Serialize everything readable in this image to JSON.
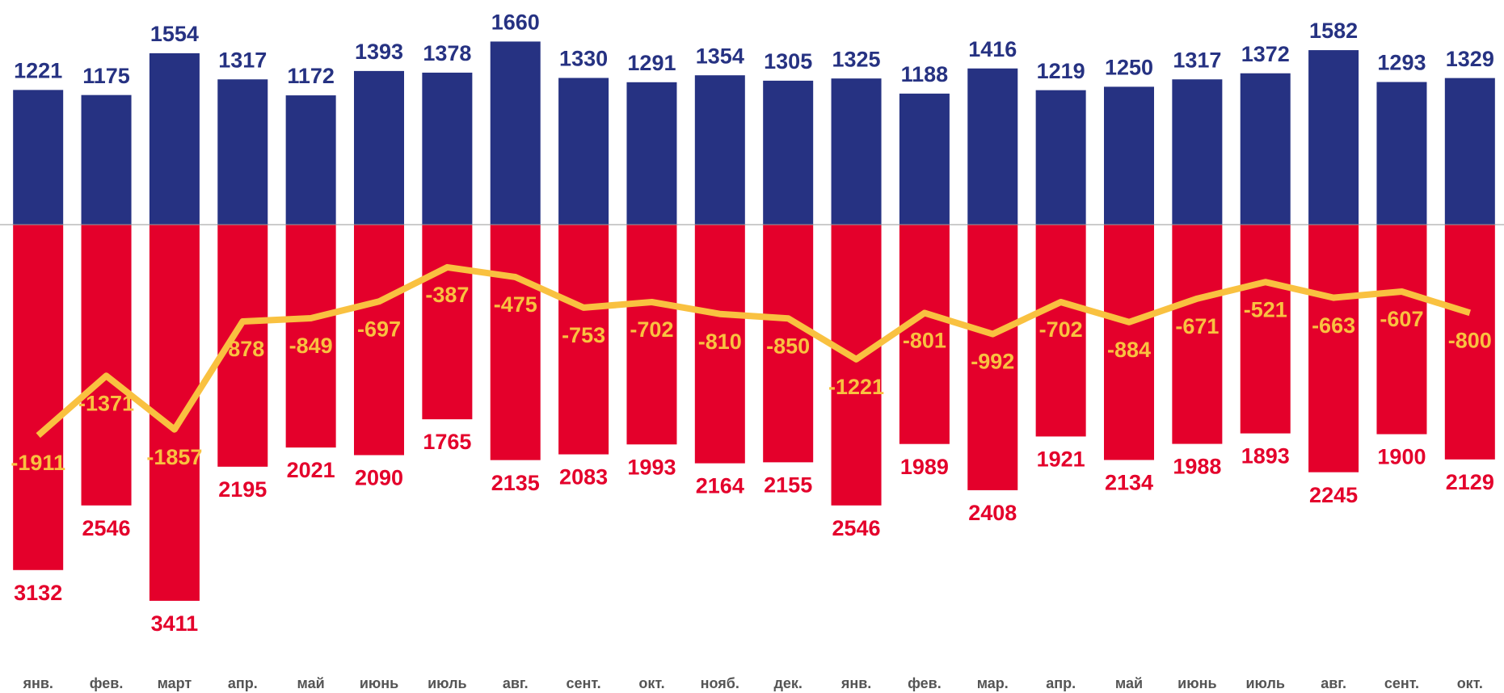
{
  "chart_data": {
    "type": "bar",
    "categories": [
      "янв.",
      "фев.",
      "март",
      "апр.",
      "май",
      "июнь",
      "июль",
      "авг.",
      "сент.",
      "окт.",
      "нояб.",
      "дек.",
      "янв.",
      "фев.",
      "мар.",
      "апр.",
      "май",
      "июнь",
      "июль",
      "авг.",
      "сент.",
      "окт."
    ],
    "series": [
      {
        "type": "bar",
        "color": "#263282",
        "values": [
          1221,
          1175,
          1554,
          1317,
          1172,
          1393,
          1378,
          1660,
          1330,
          1291,
          1354,
          1305,
          1325,
          1188,
          1416,
          1219,
          1250,
          1317,
          1372,
          1582,
          1293,
          1329
        ]
      },
      {
        "type": "bar",
        "color": "#e4002b",
        "values": [
          -3132,
          -2546,
          -3411,
          -2195,
          -2021,
          -2090,
          -1765,
          -2135,
          -2083,
          -1993,
          -2164,
          -2155,
          -2546,
          -1989,
          -2408,
          -1921,
          -2134,
          -1988,
          -1893,
          -2245,
          -1900,
          -2129
        ],
        "value_labels": [
          "3132",
          "2546",
          "3411",
          "2195",
          "2021",
          "2090",
          "1765",
          "2135",
          "2083",
          "1993",
          "2164",
          "2155",
          "2546",
          "1989",
          "2408",
          "1921",
          "2134",
          "1988",
          "1893",
          "2245",
          "1900",
          "2129"
        ]
      },
      {
        "type": "line",
        "color": "#f9c140",
        "values": [
          -1911,
          -1371,
          -1857,
          -878,
          -849,
          -697,
          -387,
          -475,
          -753,
          -702,
          -810,
          -850,
          -1221,
          -801,
          -992,
          -702,
          -884,
          -671,
          -521,
          -663,
          -607,
          -800
        ]
      }
    ],
    "ylim": [
      -3800,
      2000
    ]
  }
}
